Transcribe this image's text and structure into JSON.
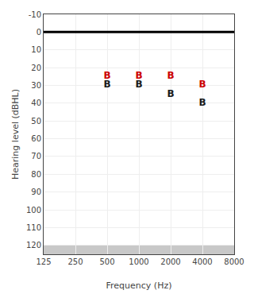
{
  "chart_data": {
    "type": "scatter",
    "title": "",
    "x_label": "Frequency (Hz)",
    "y_label": "Hearing level (dBHL)",
    "x": [
      500,
      1000,
      2000,
      4000
    ],
    "series": [
      {
        "color": "#cc0000",
        "marker": "B",
        "values": [
          25,
          25,
          25,
          30
        ]
      },
      {
        "color": "#1a1a1a",
        "marker": "B",
        "values": [
          30,
          30,
          35,
          40
        ]
      }
    ],
    "log": "x",
    "xlim": [
      125,
      8000
    ],
    "xticks": [
      125,
      250,
      500,
      1000,
      2000,
      4000,
      8000
    ],
    "ylim": [
      125,
      -10
    ],
    "yticks": [
      -10,
      0,
      10,
      20,
      30,
      40,
      50,
      60,
      70,
      80,
      90,
      100,
      110,
      120
    ],
    "shaded_range": [
      120,
      125
    ],
    "reference_line": 0,
    "grid": true
  }
}
